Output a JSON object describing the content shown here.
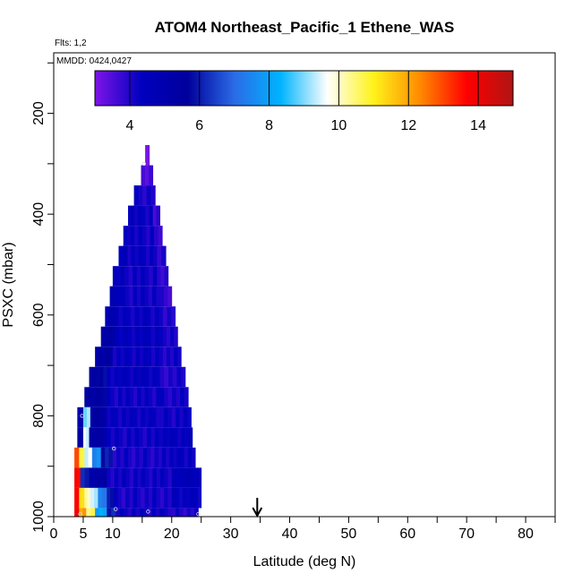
{
  "chart_data": {
    "type": "heatmap",
    "title": "ATOM4 Northeast_Pacific_1 Ethene_WAS",
    "flights_label": "Flts: 1,2",
    "dates_label": "MMDD: 0424,0427",
    "xlabel": "Latitude (deg N)",
    "ylabel": "PSXC (mbar)",
    "xlim": [
      0,
      85
    ],
    "ylim": [
      1000,
      80
    ],
    "x_ticks": [
      0,
      5,
      10,
      20,
      30,
      40,
      50,
      60,
      70,
      80
    ],
    "y_ticks": [
      200,
      400,
      600,
      800,
      1000
    ],
    "colorbar": {
      "min": 3,
      "max": 15,
      "ticks": [
        4,
        6,
        8,
        10,
        12,
        14
      ],
      "colors": [
        "#7f14e8",
        "#0000bf",
        "#00009c",
        "#2b6be6",
        "#00b4ff",
        "#ffffff",
        "#fff21a",
        "#ff8a00",
        "#ff0000",
        "#b01414"
      ]
    },
    "arrow_latitude": 34.5,
    "samples": [
      {
        "lat": 16.0,
        "p": 990,
        "value": 4.5
      },
      {
        "lat": 10.5,
        "p": 985,
        "value": 5.0
      },
      {
        "lat": 4.5,
        "p": 995,
        "value": 4.2
      },
      {
        "lat": 24.5,
        "p": 995,
        "value": 4.0
      },
      {
        "lat": 4.8,
        "p": 800,
        "value": 4.8
      },
      {
        "lat": 10.2,
        "p": 865,
        "value": 4.6
      },
      {
        "lat": 15.3,
        "p": 300,
        "value": 3.4
      }
    ],
    "rows": [
      {
        "p_top": 263,
        "p_bot": 303,
        "x0": 15.5,
        "x1": 16.2,
        "segments": [
          {
            "x0": 15.5,
            "x1": 16.2,
            "v": 3.3
          }
        ]
      },
      {
        "p_top": 303,
        "p_bot": 343,
        "x0": 14.8,
        "x1": 16.8,
        "segments": [
          {
            "x0": 14.8,
            "x1": 16.8,
            "v": 3.6
          }
        ]
      },
      {
        "p_top": 343,
        "p_bot": 383,
        "x0": 13.6,
        "x1": 17.2,
        "segments": [
          {
            "x0": 13.6,
            "x1": 17.2,
            "v": 4.1
          }
        ]
      },
      {
        "p_top": 383,
        "p_bot": 423,
        "x0": 12.6,
        "x1": 18.0,
        "segments": [
          {
            "x0": 12.6,
            "x1": 13.6,
            "v": 4.4
          },
          {
            "x0": 13.6,
            "x1": 16.8,
            "v": 4.3
          },
          {
            "x0": 16.8,
            "x1": 18.0,
            "v": 3.7
          }
        ]
      },
      {
        "p_top": 423,
        "p_bot": 463,
        "x0": 11.8,
        "x1": 18.4,
        "segments": [
          {
            "x0": 11.8,
            "x1": 13.0,
            "v": 4.3
          },
          {
            "x0": 13.0,
            "x1": 17.0,
            "v": 4.2
          },
          {
            "x0": 17.0,
            "x1": 18.4,
            "v": 3.8
          }
        ]
      },
      {
        "p_top": 463,
        "p_bot": 503,
        "x0": 11.0,
        "x1": 19.0,
        "segments": [
          {
            "x0": 11.0,
            "x1": 12.5,
            "v": 4.6
          },
          {
            "x0": 12.5,
            "x1": 17.5,
            "v": 4.3
          },
          {
            "x0": 17.5,
            "x1": 19.0,
            "v": 4.0
          }
        ]
      },
      {
        "p_top": 503,
        "p_bot": 543,
        "x0": 10.0,
        "x1": 19.4,
        "segments": [
          {
            "x0": 10.0,
            "x1": 12.0,
            "v": 4.5
          },
          {
            "x0": 12.0,
            "x1": 17.5,
            "v": 4.2
          },
          {
            "x0": 17.5,
            "x1": 19.4,
            "v": 3.9
          }
        ]
      },
      {
        "p_top": 543,
        "p_bot": 583,
        "x0": 9.5,
        "x1": 20.0,
        "segments": [
          {
            "x0": 9.5,
            "x1": 11.5,
            "v": 4.7
          },
          {
            "x0": 11.5,
            "x1": 18.0,
            "v": 4.2
          },
          {
            "x0": 18.0,
            "x1": 20.0,
            "v": 3.8
          }
        ]
      },
      {
        "p_top": 583,
        "p_bot": 623,
        "x0": 8.7,
        "x1": 20.6,
        "segments": [
          {
            "x0": 8.7,
            "x1": 11.0,
            "v": 4.8
          },
          {
            "x0": 11.0,
            "x1": 18.5,
            "v": 4.3
          },
          {
            "x0": 18.5,
            "x1": 20.6,
            "v": 3.9
          }
        ]
      },
      {
        "p_top": 623,
        "p_bot": 663,
        "x0": 8.0,
        "x1": 21.0,
        "segments": [
          {
            "x0": 8.0,
            "x1": 10.5,
            "v": 5.2
          },
          {
            "x0": 10.5,
            "x1": 18.5,
            "v": 4.4
          },
          {
            "x0": 18.5,
            "x1": 21.0,
            "v": 4.0
          }
        ]
      },
      {
        "p_top": 663,
        "p_bot": 703,
        "x0": 7.0,
        "x1": 21.6,
        "segments": [
          {
            "x0": 7.0,
            "x1": 10.0,
            "v": 5.3
          },
          {
            "x0": 10.0,
            "x1": 18.5,
            "v": 4.3
          },
          {
            "x0": 18.5,
            "x1": 21.6,
            "v": 4.1
          }
        ]
      },
      {
        "p_top": 703,
        "p_bot": 743,
        "x0": 6.0,
        "x1": 22.3,
        "segments": [
          {
            "x0": 6.0,
            "x1": 9.0,
            "v": 5.6
          },
          {
            "x0": 9.0,
            "x1": 18.0,
            "v": 4.4
          },
          {
            "x0": 18.0,
            "x1": 22.3,
            "v": 4.0
          }
        ]
      },
      {
        "p_top": 743,
        "p_bot": 783,
        "x0": 5.2,
        "x1": 22.8,
        "segments": [
          {
            "x0": 5.2,
            "x1": 9.0,
            "v": 5.5
          },
          {
            "x0": 9.0,
            "x1": 18.0,
            "v": 4.2
          },
          {
            "x0": 18.0,
            "x1": 22.8,
            "v": 4.1
          }
        ]
      },
      {
        "p_top": 783,
        "p_bot": 823,
        "x0": 4.0,
        "x1": 23.3,
        "segments": [
          {
            "x0": 4.0,
            "x1": 5.0,
            "v": 5.0
          },
          {
            "x0": 5.0,
            "x1": 6.2,
            "v": 9.0
          },
          {
            "x0": 6.2,
            "x1": 9.0,
            "v": 5.4
          },
          {
            "x0": 9.0,
            "x1": 18.0,
            "v": 4.3
          },
          {
            "x0": 18.0,
            "x1": 23.3,
            "v": 4.2
          }
        ]
      },
      {
        "p_top": 823,
        "p_bot": 863,
        "x0": 4.0,
        "x1": 23.5,
        "segments": [
          {
            "x0": 4.0,
            "x1": 5.0,
            "v": 5.4
          },
          {
            "x0": 5.0,
            "x1": 6.0,
            "v": 9.5
          },
          {
            "x0": 6.0,
            "x1": 9.0,
            "v": 5.3
          },
          {
            "x0": 9.0,
            "x1": 18.5,
            "v": 4.2
          },
          {
            "x0": 18.5,
            "x1": 23.5,
            "v": 4.4
          }
        ]
      },
      {
        "p_top": 863,
        "p_bot": 903,
        "x0": 3.5,
        "x1": 24.0,
        "segments": [
          {
            "x0": 3.5,
            "x1": 4.3,
            "v": 13.2
          },
          {
            "x0": 4.3,
            "x1": 5.2,
            "v": 11.0
          },
          {
            "x0": 5.2,
            "x1": 6.5,
            "v": 9.6
          },
          {
            "x0": 6.5,
            "x1": 8.0,
            "v": 7.6
          },
          {
            "x0": 8.0,
            "x1": 10.0,
            "v": 6.0
          },
          {
            "x0": 10.0,
            "x1": 19.0,
            "v": 4.1
          },
          {
            "x0": 19.0,
            "x1": 24.0,
            "v": 4.3
          }
        ]
      },
      {
        "p_top": 903,
        "p_bot": 943,
        "x0": 3.5,
        "x1": 25.0,
        "segments": [
          {
            "x0": 3.5,
            "x1": 4.5,
            "v": 13.8
          },
          {
            "x0": 4.5,
            "x1": 6.0,
            "v": 6.2
          },
          {
            "x0": 6.0,
            "x1": 9.0,
            "v": 5.3
          },
          {
            "x0": 9.0,
            "x1": 20.0,
            "v": 4.2
          },
          {
            "x0": 20.0,
            "x1": 25.0,
            "v": 4.6
          }
        ]
      },
      {
        "p_top": 943,
        "p_bot": 983,
        "x0": 3.5,
        "x1": 25.0,
        "segments": [
          {
            "x0": 3.5,
            "x1": 4.3,
            "v": 13.5
          },
          {
            "x0": 4.3,
            "x1": 5.2,
            "v": 11.0
          },
          {
            "x0": 5.2,
            "x1": 6.2,
            "v": 10.0
          },
          {
            "x0": 6.2,
            "x1": 7.5,
            "v": 9.2
          },
          {
            "x0": 7.5,
            "x1": 9.0,
            "v": 7.2
          },
          {
            "x0": 9.0,
            "x1": 10.2,
            "v": 5.8
          },
          {
            "x0": 10.2,
            "x1": 20.0,
            "v": 4.1
          },
          {
            "x0": 20.0,
            "x1": 25.0,
            "v": 4.4
          }
        ]
      },
      {
        "p_top": 983,
        "p_bot": 1005,
        "x0": 3.5,
        "x1": 24.5,
        "segments": [
          {
            "x0": 3.5,
            "x1": 4.3,
            "v": 14.0
          },
          {
            "x0": 4.3,
            "x1": 5.5,
            "v": 12.0
          },
          {
            "x0": 5.5,
            "x1": 7.0,
            "v": 10.5
          },
          {
            "x0": 7.0,
            "x1": 9.0,
            "v": 8.0
          },
          {
            "x0": 9.0,
            "x1": 10.5,
            "v": 6.0
          },
          {
            "x0": 10.5,
            "x1": 20.0,
            "v": 4.2
          },
          {
            "x0": 20.0,
            "x1": 24.5,
            "v": 4.0
          }
        ]
      }
    ]
  }
}
